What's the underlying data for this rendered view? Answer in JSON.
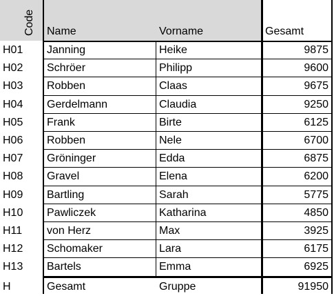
{
  "header": {
    "code": "Code",
    "name": "Name",
    "vorname": "Vorname",
    "gesamt": "Gesamt"
  },
  "rows": [
    {
      "code": "H01",
      "name": "Janning",
      "vorname": "Heike",
      "gesamt": "9875"
    },
    {
      "code": "H02",
      "name": "Schröer",
      "vorname": "Philipp",
      "gesamt": "9600"
    },
    {
      "code": "H03",
      "name": "Robben",
      "vorname": "Claas",
      "gesamt": "9675"
    },
    {
      "code": "H04",
      "name": "Gerdelmann",
      "vorname": "Claudia",
      "gesamt": "9250"
    },
    {
      "code": "H05",
      "name": "Frank",
      "vorname": "Birte",
      "gesamt": "6125"
    },
    {
      "code": "H06",
      "name": "Robben",
      "vorname": "Nele",
      "gesamt": "6700"
    },
    {
      "code": "H07",
      "name": "Gröninger",
      "vorname": "Edda",
      "gesamt": "6875"
    },
    {
      "code": "H08",
      "name": "Gravel",
      "vorname": "Elena",
      "gesamt": "6200"
    },
    {
      "code": "H09",
      "name": "Bartling",
      "vorname": "Sarah",
      "gesamt": "5775"
    },
    {
      "code": "H10",
      "name": "Pawliczek",
      "vorname": "Katharina",
      "gesamt": "4850"
    },
    {
      "code": "H11",
      "name": "von Herz",
      "vorname": "Max",
      "gesamt": "3925"
    },
    {
      "code": "H12",
      "name": "Schomaker",
      "vorname": "Lara",
      "gesamt": "6175"
    },
    {
      "code": "H13",
      "name": "Bartels",
      "vorname": "Emma",
      "gesamt": "6925"
    }
  ],
  "total": {
    "code": "H",
    "name": "Gesamt",
    "vorname": "Gruppe",
    "gesamt": "91950"
  }
}
